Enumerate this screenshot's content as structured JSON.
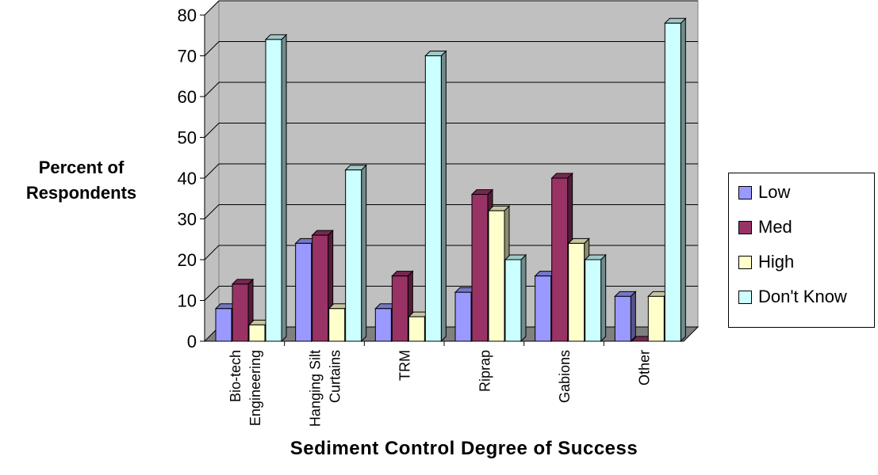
{
  "chart_data": {
    "type": "bar",
    "title": "",
    "xlabel": "Sediment Control Degree of Success",
    "ylabel": "Percent of Respondents",
    "ylim": [
      0,
      80
    ],
    "yticks": [
      0,
      10,
      20,
      30,
      40,
      50,
      60,
      70,
      80
    ],
    "grid": true,
    "legend_position": "right",
    "categories": [
      [
        "Bio-tech",
        "Engineering"
      ],
      [
        "Hanging Silt",
        "Curtains"
      ],
      [
        "TRM"
      ],
      [
        "Riprap"
      ],
      [
        "Gabions"
      ],
      [
        "Other"
      ]
    ],
    "series": [
      {
        "name": "Low",
        "color": "#9999ff",
        "values": [
          8,
          24,
          8,
          12,
          16,
          11
        ]
      },
      {
        "name": "Med",
        "color": "#993366",
        "values": [
          14,
          26,
          16,
          36,
          40,
          0
        ]
      },
      {
        "name": "High",
        "color": "#ffffcc",
        "values": [
          4,
          8,
          6,
          32,
          24,
          11
        ]
      },
      {
        "name": "Don't Know",
        "color": "#ccffff",
        "values": [
          74,
          42,
          70,
          20,
          20,
          78
        ]
      }
    ],
    "plot_background": "#c0c0c0",
    "floor_color": "#808080"
  }
}
